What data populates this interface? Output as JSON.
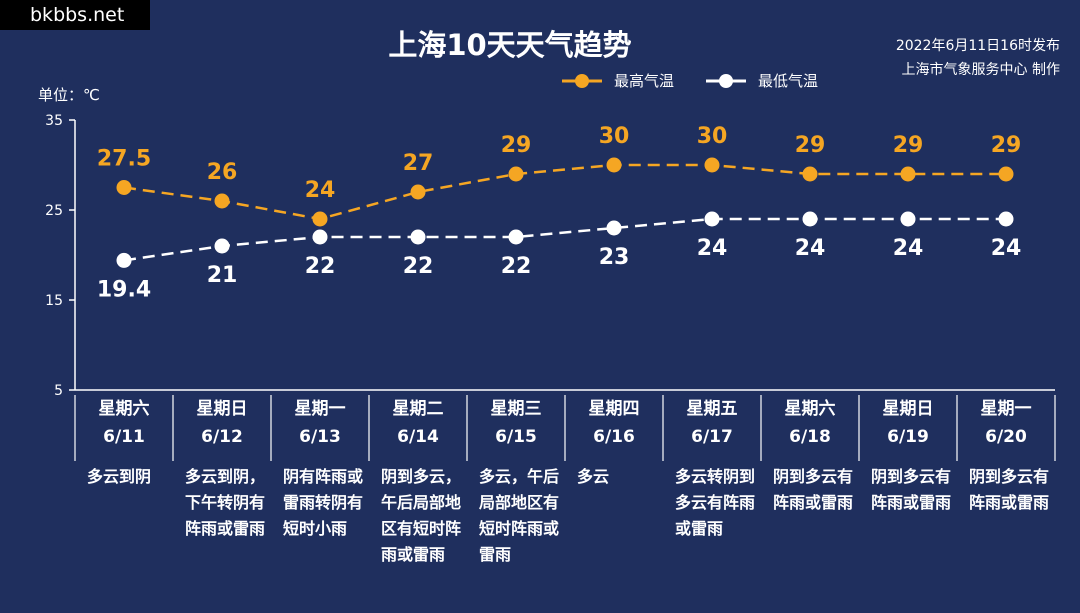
{
  "watermark": "bkbbs.net",
  "title": "上海10天天气趋势",
  "publish": {
    "line1": "2022年6月11日16时发布",
    "line2": "上海市气象服务中心 制作"
  },
  "unit_label": "单位：℃",
  "colors": {
    "background": "#1f2f5e",
    "high": "#f5a623",
    "low": "#ffffff"
  },
  "chart_data": {
    "type": "line",
    "ylim": [
      5,
      35
    ],
    "yticks": [
      5,
      15,
      25,
      35
    ],
    "grid": false,
    "legend_position": "top-right",
    "categories": [
      "星期六 6/11",
      "星期日 6/12",
      "星期一 6/13",
      "星期二 6/14",
      "星期三 6/15",
      "星期四 6/16",
      "星期五 6/17",
      "星期六 6/18",
      "星期日 6/19",
      "星期一 6/20"
    ],
    "series": [
      {
        "name": "最高气温",
        "values": [
          27.5,
          26,
          24,
          27,
          29,
          30,
          30,
          29,
          29,
          29
        ],
        "labels": [
          "27.5",
          "26",
          "24",
          "27",
          "29",
          "30",
          "30",
          "29",
          "29",
          "29"
        ]
      },
      {
        "name": "最低气温",
        "values": [
          19.4,
          21,
          22,
          22,
          22,
          23,
          24,
          24,
          24,
          24
        ],
        "labels": [
          "19.4",
          "21",
          "22",
          "22",
          "22",
          "23",
          "24",
          "24",
          "24",
          "24"
        ]
      }
    ]
  },
  "days": [
    {
      "weekday": "星期六",
      "date": "6/11",
      "weather": "多云到阴"
    },
    {
      "weekday": "星期日",
      "date": "6/12",
      "weather": "多云到阴，下午转阴有阵雨或雷雨"
    },
    {
      "weekday": "星期一",
      "date": "6/13",
      "weather": "阴有阵雨或雷雨转阴有短时小雨"
    },
    {
      "weekday": "星期二",
      "date": "6/14",
      "weather": "阴到多云，午后局部地区有短时阵雨或雷雨"
    },
    {
      "weekday": "星期三",
      "date": "6/15",
      "weather": "多云，午后局部地区有短时阵雨或雷雨"
    },
    {
      "weekday": "星期四",
      "date": "6/16",
      "weather": "多云"
    },
    {
      "weekday": "星期五",
      "date": "6/17",
      "weather": "多云转阴到多云有阵雨或雷雨"
    },
    {
      "weekday": "星期六",
      "date": "6/18",
      "weather": "阴到多云有阵雨或雷雨"
    },
    {
      "weekday": "星期日",
      "date": "6/19",
      "weather": "阴到多云有阵雨或雷雨"
    },
    {
      "weekday": "星期一",
      "date": "6/20",
      "weather": "阴到多云有阵雨或雷雨"
    }
  ]
}
